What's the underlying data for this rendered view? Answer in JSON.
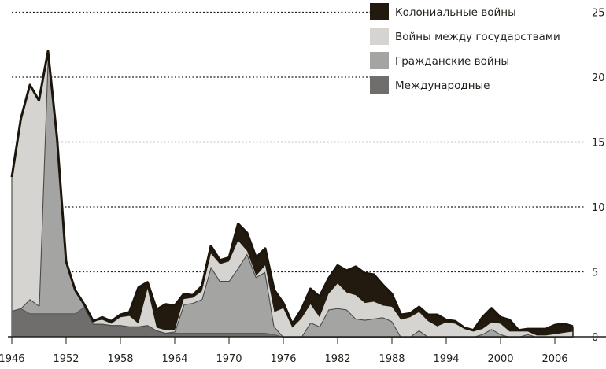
{
  "chart_data": {
    "type": "area",
    "stacked": true,
    "title": "",
    "xlabel": "",
    "ylabel": "",
    "x": [
      1946,
      1947,
      1948,
      1949,
      1950,
      1951,
      1952,
      1953,
      1954,
      1955,
      1956,
      1957,
      1958,
      1959,
      1960,
      1961,
      1962,
      1963,
      1964,
      1965,
      1966,
      1967,
      1968,
      1969,
      1970,
      1971,
      1972,
      1973,
      1974,
      1975,
      1976,
      1977,
      1978,
      1979,
      1980,
      1981,
      1982,
      1983,
      1984,
      1985,
      1986,
      1987,
      1988,
      1989,
      1990,
      1991,
      1992,
      1993,
      1994,
      1995,
      1996,
      1997,
      1998,
      1999,
      2000,
      2001,
      2002,
      2003,
      2004,
      2005,
      2006,
      2007,
      2008
    ],
    "xlim": [
      1946,
      2008
    ],
    "ylim": [
      0,
      25
    ],
    "x_ticks": [
      "1946",
      "1952",
      "1958",
      "1964",
      "1970",
      "1976",
      "1982",
      "1988",
      "1994",
      "2000",
      "2006"
    ],
    "y_ticks": [
      "0",
      "5",
      "10",
      "15",
      "20",
      "25"
    ],
    "y_axis_side": "right",
    "grid": "horizontal dotted",
    "legend_position": "top-right",
    "series": [
      {
        "name": "Международные",
        "color": "#6f6e6c",
        "values": [
          2.0,
          2.2,
          1.8,
          1.8,
          1.8,
          1.8,
          1.8,
          1.8,
          2.3,
          1.0,
          1.0,
          0.9,
          0.9,
          0.8,
          0.8,
          0.9,
          0.5,
          0.3,
          0.3,
          0.3,
          0.3,
          0.3,
          0.3,
          0.3,
          0.3,
          0.3,
          0.3,
          0.3,
          0.3,
          0.2,
          0,
          0,
          0,
          0,
          0,
          0,
          0,
          0,
          0,
          0,
          0,
          0,
          0,
          0,
          0,
          0,
          0,
          0,
          0,
          0,
          0,
          0,
          0,
          0,
          0,
          0,
          0,
          0,
          0,
          0,
          0,
          0,
          0
        ]
      },
      {
        "name": "Гражданские войны",
        "color": "#a4a4a2",
        "values": [
          0,
          0,
          1.1,
          0.6,
          20.2,
          13.5,
          4.0,
          1.8,
          0.2,
          0,
          0,
          0,
          0,
          0,
          0,
          0,
          0,
          0,
          0.1,
          2.2,
          2.3,
          2.6,
          5.1,
          4.0,
          4.0,
          5.0,
          6.1,
          4.3,
          4.7,
          0.6,
          0,
          0,
          0,
          1.1,
          0.8,
          2.1,
          2.2,
          2.1,
          1.4,
          1.3,
          1.4,
          1.5,
          1.2,
          0,
          0,
          0.5,
          0,
          0,
          0,
          0,
          0,
          0,
          0.2,
          0.6,
          0.2,
          0,
          0,
          0.2,
          0,
          0,
          0,
          0,
          0
        ]
      },
      {
        "name": "Войны между государствами",
        "color": "#d5d4d1",
        "values": [
          10.3,
          14.6,
          16.5,
          15.8,
          0,
          0,
          0,
          0,
          0,
          0.2,
          0.3,
          0.1,
          0.6,
          0.8,
          0.2,
          2.8,
          0.2,
          0.2,
          0.1,
          0.4,
          0.4,
          0.6,
          1.0,
          1.3,
          1.5,
          2.1,
          0.2,
          0.1,
          0.5,
          1.1,
          2.2,
          0.7,
          1.4,
          1.4,
          0.7,
          1.2,
          1.9,
          1.3,
          1.8,
          1.3,
          1.3,
          0.9,
          1.1,
          1.3,
          1.5,
          1.4,
          1.2,
          0.8,
          1.1,
          1.0,
          0.6,
          0.4,
          0.4,
          0.5,
          0.8,
          0.4,
          0.4,
          0.2,
          0.1,
          0.1,
          0.2,
          0.3,
          0.4
        ]
      },
      {
        "name": "Колониальные войны",
        "color": "#221a0e",
        "values": [
          0,
          0,
          0,
          0,
          0,
          0,
          0,
          0,
          0,
          0,
          0.2,
          0.2,
          0.2,
          0.3,
          2.8,
          0.5,
          1.4,
          2.0,
          1.9,
          0.4,
          0.2,
          0.4,
          0.6,
          0.3,
          0.3,
          1.3,
          1.4,
          1.4,
          1.3,
          1.7,
          0.4,
          0.3,
          0.7,
          1.2,
          1.6,
          1.2,
          1.4,
          1.7,
          2.2,
          2.3,
          2.1,
          1.6,
          1.0,
          0.4,
          0.3,
          0.4,
          0.5,
          0.9,
          0.2,
          0.2,
          0.1,
          0.1,
          0.9,
          1.1,
          0.5,
          0.9,
          0.1,
          0.2,
          0.5,
          0.5,
          0.7,
          0.7,
          0.4
        ]
      }
    ],
    "legend": [
      "Колониальные войны",
      "Войны между государствами",
      "Гражданские войны",
      "Международные"
    ]
  }
}
